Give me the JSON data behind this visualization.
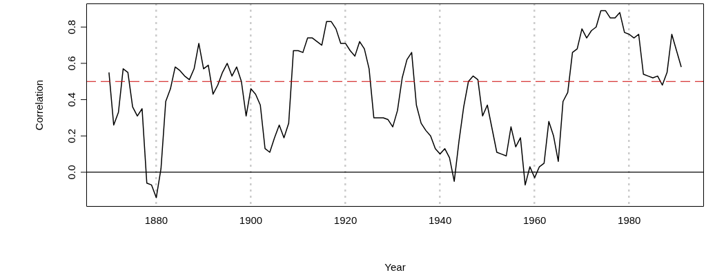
{
  "chart_data": {
    "type": "line",
    "xlabel": "Year",
    "ylabel": "Correlation",
    "x": [
      1870,
      1871,
      1872,
      1873,
      1874,
      1875,
      1876,
      1877,
      1878,
      1879,
      1880,
      1881,
      1882,
      1883,
      1884,
      1885,
      1886,
      1887,
      1888,
      1889,
      1890,
      1891,
      1892,
      1893,
      1894,
      1895,
      1896,
      1897,
      1898,
      1899,
      1900,
      1901,
      1902,
      1903,
      1904,
      1905,
      1906,
      1907,
      1908,
      1909,
      1910,
      1911,
      1912,
      1913,
      1914,
      1915,
      1916,
      1917,
      1918,
      1919,
      1920,
      1921,
      1922,
      1923,
      1924,
      1925,
      1926,
      1927,
      1928,
      1929,
      1930,
      1931,
      1932,
      1933,
      1934,
      1935,
      1936,
      1937,
      1938,
      1939,
      1940,
      1941,
      1942,
      1943,
      1944,
      1945,
      1946,
      1947,
      1948,
      1949,
      1950,
      1951,
      1952,
      1953,
      1954,
      1955,
      1956,
      1957,
      1958,
      1959,
      1960,
      1961,
      1962,
      1963,
      1964,
      1965,
      1966,
      1967,
      1968,
      1969,
      1970,
      1971,
      1972,
      1973,
      1974,
      1975,
      1976,
      1977,
      1978,
      1979,
      1980,
      1981,
      1982,
      1983,
      1984,
      1985,
      1986,
      1987,
      1988,
      1989,
      1990,
      1991
    ],
    "series": [
      {
        "color": "#000000",
        "values": [
          0.55,
          0.26,
          0.33,
          0.57,
          0.55,
          0.36,
          0.31,
          0.35,
          -0.06,
          -0.07,
          -0.14,
          0.02,
          0.39,
          0.46,
          0.58,
          0.56,
          0.53,
          0.51,
          0.57,
          0.71,
          0.57,
          0.59,
          0.43,
          0.48,
          0.55,
          0.6,
          0.53,
          0.58,
          0.5,
          0.31,
          0.46,
          0.43,
          0.37,
          0.13,
          0.11,
          0.19,
          0.26,
          0.19,
          0.27,
          0.67,
          0.67,
          0.66,
          0.74,
          0.74,
          0.72,
          0.7,
          0.83,
          0.83,
          0.79,
          0.71,
          0.71,
          0.67,
          0.64,
          0.72,
          0.68,
          0.57,
          0.3,
          0.3,
          0.3,
          0.29,
          0.25,
          0.34,
          0.52,
          0.62,
          0.66,
          0.37,
          0.27,
          0.23,
          0.2,
          0.13,
          0.1,
          0.13,
          0.08,
          -0.05,
          0.17,
          0.36,
          0.5,
          0.53,
          0.51,
          0.31,
          0.37,
          0.24,
          0.11,
          0.1,
          0.09,
          0.25,
          0.14,
          0.19,
          -0.07,
          0.03,
          -0.03,
          0.03,
          0.05,
          0.28,
          0.2,
          0.06,
          0.39,
          0.44,
          0.66,
          0.68,
          0.79,
          0.74,
          0.78,
          0.8,
          0.89,
          0.89,
          0.85,
          0.85,
          0.88,
          0.77,
          0.76,
          0.74,
          0.76,
          0.54,
          0.53,
          0.52,
          0.53,
          0.48,
          0.55,
          0.76,
          0.67,
          0.58
        ]
      }
    ],
    "xlim": [
      1865.2,
      1995.8
    ],
    "xticks": [
      1880,
      1900,
      1920,
      1940,
      1960,
      1980
    ],
    "ylim": [
      -0.19,
      0.93
    ],
    "yticks": [
      {
        "value": 0,
        "label": "0.0"
      },
      {
        "value": 0.2,
        "label": "0.2"
      },
      {
        "value": 0.4,
        "label": "0.4"
      },
      {
        "value": 0.6,
        "label": "0.6"
      },
      {
        "value": 0.8,
        "label": "0.8"
      }
    ],
    "grid": "x",
    "legend": false,
    "marker": "none",
    "line_style": "solid",
    "ref_lines": [
      {
        "axis": "y",
        "value": 0,
        "color": "#000000",
        "line_style": "solid"
      },
      {
        "axis": "y",
        "value": 0.5,
        "color": "#cc0000",
        "line_style": "dashed"
      }
    ]
  }
}
